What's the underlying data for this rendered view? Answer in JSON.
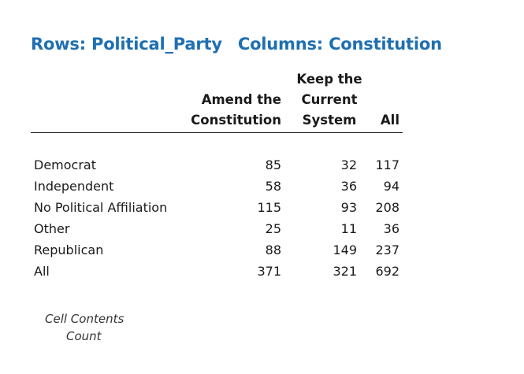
{
  "title": {
    "rows": "Rows: Political_Party",
    "columns": "Columns: Constitution"
  },
  "table": {
    "headers": {
      "amend": [
        "Amend the",
        "Constitution"
      ],
      "keep": [
        "Keep the",
        "Current",
        "System"
      ],
      "all": "All"
    },
    "rows": [
      {
        "label": "Democrat",
        "amend": "85",
        "keep": "32",
        "all": "117"
      },
      {
        "label": "Independent",
        "amend": "58",
        "keep": "36",
        "all": "94"
      },
      {
        "label": "No Political Affiliation",
        "amend": "115",
        "keep": "93",
        "all": "208"
      },
      {
        "label": "Other",
        "amend": "25",
        "keep": "11",
        "all": "36"
      },
      {
        "label": "Republican",
        "amend": "88",
        "keep": "149",
        "all": "237"
      },
      {
        "label": "All",
        "amend": "371",
        "keep": "321",
        "all": "692"
      }
    ]
  },
  "footnote": {
    "line1": "Cell Contents",
    "line2": "Count"
  },
  "colors": {
    "title": "#1f6fb2",
    "text": "#1a1a1a"
  }
}
